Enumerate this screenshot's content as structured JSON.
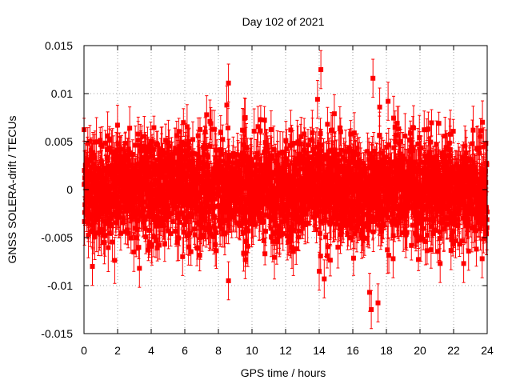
{
  "chart_data": {
    "type": "scatter",
    "title": "Day 102 of 2021",
    "xlabel": "GPS time / hours",
    "ylabel": "GNSS SOLERA-drift / TECUs",
    "xlim": [
      0,
      24
    ],
    "ylim": [
      -0.015,
      0.015
    ],
    "x_ticks": [
      "0",
      "2",
      "4",
      "6",
      "8",
      "10",
      "12",
      "14",
      "16",
      "18",
      "20",
      "22",
      "24"
    ],
    "y_ticks": [
      "-0.015",
      "-0.01",
      "-0.005",
      "0",
      "0.005",
      "0.01",
      "0.015"
    ],
    "grid": true,
    "error_bars": true,
    "color": "#ff0000",
    "points_per_hour": 120,
    "typical_spread": 0.0025,
    "typical_error": 0.0018,
    "outliers": [
      {
        "x": 0.5,
        "y": -0.008
      },
      {
        "x": 3.3,
        "y": -0.0082
      },
      {
        "x": 7.3,
        "y": 0.0078
      },
      {
        "x": 8.5,
        "y": 0.0088
      },
      {
        "x": 8.6,
        "y": 0.0111
      },
      {
        "x": 8.6,
        "y": -0.0095
      },
      {
        "x": 9.6,
        "y": 0.0075
      },
      {
        "x": 9.6,
        "y": -0.0073
      },
      {
        "x": 13.9,
        "y": 0.0094
      },
      {
        "x": 14.1,
        "y": 0.0125
      },
      {
        "x": 14.0,
        "y": -0.0085
      },
      {
        "x": 14.3,
        "y": -0.0093
      },
      {
        "x": 14.9,
        "y": 0.0079
      },
      {
        "x": 17.0,
        "y": -0.0107
      },
      {
        "x": 17.1,
        "y": -0.0125
      },
      {
        "x": 17.2,
        "y": 0.0116
      },
      {
        "x": 17.5,
        "y": -0.0118
      },
      {
        "x": 17.6,
        "y": 0.0086
      },
      {
        "x": 18.1,
        "y": 0.0092
      },
      {
        "x": 18.4,
        "y": -0.0072
      },
      {
        "x": 21.2,
        "y": -0.0077
      },
      {
        "x": 22.6,
        "y": -0.0077
      },
      {
        "x": 23.7,
        "y": -0.0072
      }
    ]
  }
}
